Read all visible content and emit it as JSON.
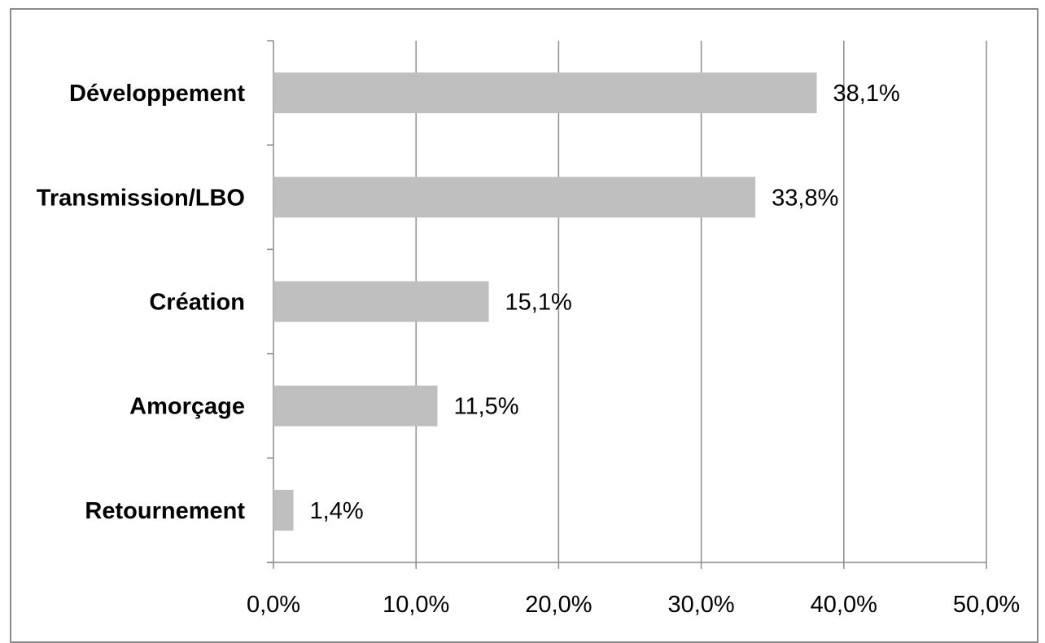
{
  "chart_data": {
    "type": "bar",
    "orientation": "horizontal",
    "categories": [
      "Développement",
      "Transmission/LBO",
      "Création",
      "Amorçage",
      "Retournement"
    ],
    "values": [
      38.1,
      33.8,
      15.1,
      11.5,
      1.4
    ],
    "data_labels": [
      "38,1%",
      "33,8%",
      "15,1%",
      "11,5%",
      "1,4%"
    ],
    "xlim": [
      0,
      50
    ],
    "x_ticks": [
      0,
      10,
      20,
      30,
      40,
      50
    ],
    "x_tick_labels": [
      "0,0%",
      "10,0%",
      "20,0%",
      "30,0%",
      "40,0%",
      "50,0%"
    ],
    "title": "",
    "xlabel": "",
    "ylabel": "",
    "grid": "vertical",
    "legend": "none",
    "colors": {
      "bar": "#bfbfbf",
      "grid": "#8c8c8c",
      "axis": "#8c8c8c",
      "frame": "#8c8c8c"
    }
  }
}
